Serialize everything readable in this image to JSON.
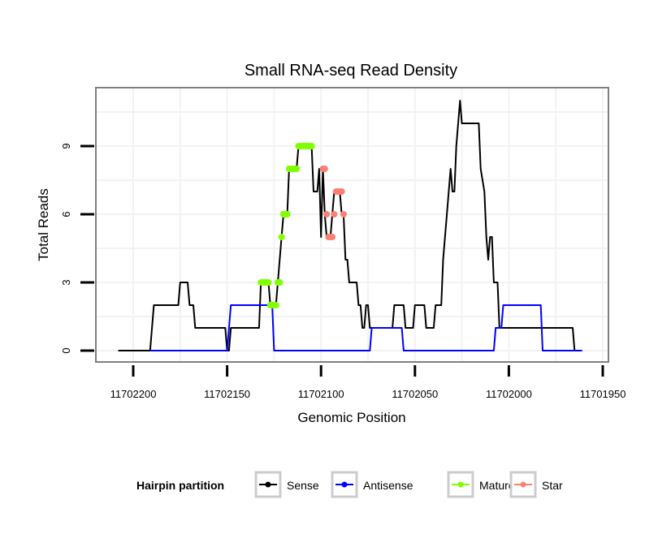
{
  "chart_data": {
    "type": "line",
    "title": "Small RNA-seq Read Density",
    "xlabel": "Genomic Position",
    "ylabel": "Total Reads",
    "xlim": [
      11702215,
      11701945
    ],
    "x_reversed": true,
    "ylim": [
      -0.5,
      11.7
    ],
    "grid": true,
    "x_ticks": [
      11702200,
      11702150,
      11702100,
      11702050,
      11702000,
      11701950
    ],
    "x_tick_labels": [
      "11702200",
      "11702150",
      "11702100",
      "11702050",
      "11702000",
      "11701950"
    ],
    "y_ticks": [
      0,
      3,
      6,
      9
    ],
    "y_tick_labels": [
      "0",
      "3",
      "6",
      "9"
    ],
    "legend": {
      "title": "Hairpin partition",
      "placement": "bottom",
      "entries": [
        {
          "label": "Sense",
          "color": "#000000"
        },
        {
          "label": "Antisense",
          "color": "#0000ff"
        },
        {
          "label": "Mature",
          "color": "#7fff00"
        },
        {
          "label": "Star",
          "color": "#fa8072"
        }
      ]
    },
    "series": [
      {
        "name": "Sense",
        "color": "#000000",
        "style": "line",
        "points": [
          [
            11702208,
            0
          ],
          [
            11702191,
            0
          ],
          [
            11702190,
            1
          ],
          [
            11702189,
            2
          ],
          [
            11702176,
            2
          ],
          [
            11702175,
            3
          ],
          [
            11702171,
            3
          ],
          [
            11702170,
            2
          ],
          [
            11702168,
            2
          ],
          [
            11702167,
            1
          ],
          [
            11702151,
            1
          ],
          [
            11702150,
            0
          ],
          [
            11702149,
            0
          ],
          [
            11702148,
            1
          ],
          [
            11702133,
            1
          ],
          [
            11702132,
            3
          ],
          [
            11702128,
            3
          ],
          [
            11702127,
            2
          ],
          [
            11702124,
            2
          ],
          [
            11702123,
            3
          ],
          [
            11702121,
            5
          ],
          [
            11702120,
            6
          ],
          [
            11702118,
            6
          ],
          [
            11702117,
            8
          ],
          [
            11702113,
            8
          ],
          [
            11702112,
            9
          ],
          [
            11702105,
            9
          ],
          [
            11702104,
            7
          ],
          [
            11702102,
            7
          ],
          [
            11702101,
            8
          ],
          [
            11702100,
            5
          ],
          [
            11702099,
            8
          ],
          [
            11702098,
            6
          ],
          [
            11702097,
            5
          ],
          [
            11702095,
            5
          ],
          [
            11702094,
            6
          ],
          [
            11702093,
            7
          ],
          [
            11702090,
            7
          ],
          [
            11702089,
            6
          ],
          [
            11702088,
            6
          ],
          [
            11702087,
            4
          ],
          [
            11702086,
            4
          ],
          [
            11702085,
            3
          ],
          [
            11702081,
            3
          ],
          [
            11702080,
            2
          ],
          [
            11702079,
            2
          ],
          [
            11702078,
            1
          ],
          [
            11702077,
            1
          ],
          [
            11702076,
            2
          ],
          [
            11702075,
            2
          ],
          [
            11702074,
            1
          ],
          [
            11702062,
            1
          ],
          [
            11702061,
            2
          ],
          [
            11702056,
            2
          ],
          [
            11702055,
            1
          ],
          [
            11702051,
            1
          ],
          [
            11702050,
            2
          ],
          [
            11702045,
            2
          ],
          [
            11702044,
            1
          ],
          [
            11702040,
            1
          ],
          [
            11702039,
            2
          ],
          [
            11702036,
            2
          ],
          [
            11702035,
            4
          ],
          [
            11702034,
            5
          ],
          [
            11702033,
            6
          ],
          [
            11702032,
            7
          ],
          [
            11702031,
            8
          ],
          [
            11702030,
            7
          ],
          [
            11702029,
            7
          ],
          [
            11702028,
            9
          ],
          [
            11702027,
            10
          ],
          [
            11702026,
            11
          ],
          [
            11702025,
            10
          ],
          [
            11702016,
            10
          ],
          [
            11702015,
            8
          ],
          [
            11702013,
            7
          ],
          [
            11702012,
            5
          ],
          [
            11702011,
            4
          ],
          [
            11702010,
            5
          ],
          [
            11702009,
            5
          ],
          [
            11702008,
            3
          ],
          [
            11702006,
            3
          ],
          [
            11702005,
            1
          ],
          [
            11701966,
            1
          ],
          [
            11701965,
            0
          ],
          [
            11701961,
            0
          ]
        ]
      },
      {
        "name": "Antisense",
        "color": "#0000ff",
        "style": "line",
        "points": [
          [
            11702191,
            0
          ],
          [
            11702150,
            0
          ],
          [
            11702148,
            2
          ],
          [
            11702126,
            2
          ],
          [
            11702125,
            0
          ],
          [
            11702074,
            0
          ],
          [
            11702073,
            1
          ],
          [
            11702057,
            1
          ],
          [
            11702056,
            0
          ],
          [
            11702008,
            0
          ],
          [
            11702007,
            1
          ],
          [
            11702004,
            1
          ],
          [
            11702003,
            2
          ],
          [
            11701983,
            2
          ],
          [
            11701982,
            0
          ],
          [
            11701961,
            0
          ]
        ]
      },
      {
        "name": "Mature",
        "color": "#7fff00",
        "style": "points",
        "points": [
          [
            11702132,
            3
          ],
          [
            11702131,
            3
          ],
          [
            11702130,
            3
          ],
          [
            11702129,
            3
          ],
          [
            11702128,
            3
          ],
          [
            11702127,
            2
          ],
          [
            11702126,
            2
          ],
          [
            11702125,
            2
          ],
          [
            11702124,
            2
          ],
          [
            11702123,
            3
          ],
          [
            11702122,
            3
          ],
          [
            11702121,
            5
          ],
          [
            11702120,
            6
          ],
          [
            11702119,
            6
          ],
          [
            11702118,
            6
          ],
          [
            11702117,
            8
          ],
          [
            11702116,
            8
          ],
          [
            11702115,
            8
          ],
          [
            11702114,
            8
          ],
          [
            11702113,
            8
          ],
          [
            11702112,
            9
          ],
          [
            11702111,
            9
          ],
          [
            11702110,
            9
          ],
          [
            11702109,
            9
          ],
          [
            11702108,
            9
          ],
          [
            11702107,
            9
          ],
          [
            11702106,
            9
          ],
          [
            11702105,
            9
          ]
        ]
      },
      {
        "name": "Star",
        "color": "#fa8072",
        "style": "points",
        "points": [
          [
            11702099,
            8
          ],
          [
            11702098,
            8
          ],
          [
            11702097,
            6
          ],
          [
            11702096,
            5
          ],
          [
            11702095,
            5
          ],
          [
            11702094,
            5
          ],
          [
            11702093,
            6
          ],
          [
            11702092,
            7
          ],
          [
            11702091,
            7
          ],
          [
            11702090,
            7
          ],
          [
            11702089,
            7
          ],
          [
            11702088,
            6
          ]
        ]
      }
    ]
  }
}
